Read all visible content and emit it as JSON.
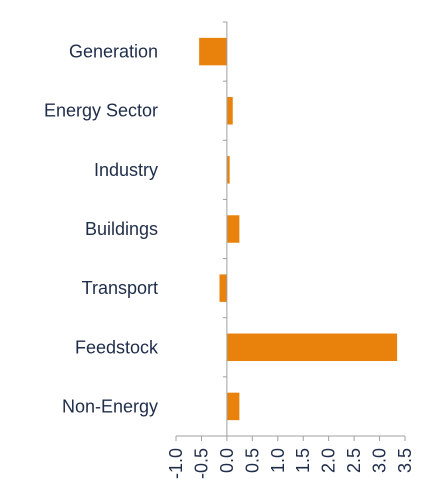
{
  "chart_data": {
    "type": "bar",
    "orientation": "horizontal",
    "categories": [
      "Generation",
      "Energy Sector",
      "Industry",
      "Buildings",
      "Transport",
      "Feedstock",
      "Non-Energy"
    ],
    "values": [
      -0.55,
      0.12,
      0.06,
      0.25,
      -0.15,
      3.35,
      0.25
    ],
    "xlim": [
      -1.0,
      3.5
    ],
    "xticks": [
      "-1.0",
      "-0.5",
      "0.0",
      "0.5",
      "1.0",
      "1.5",
      "2.0",
      "2.5",
      "3.0",
      "3.5"
    ],
    "bar_color": "#e8820c",
    "grid": false
  }
}
